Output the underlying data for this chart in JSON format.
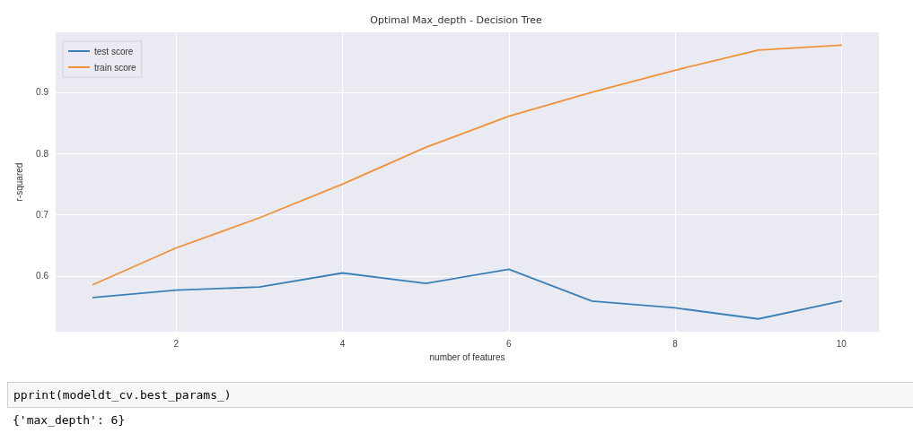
{
  "chart_data": {
    "type": "line",
    "title": "Optimal Max_depth - Decision Tree",
    "xlabel": "number of features",
    "ylabel": "r-squared",
    "x": [
      1,
      2,
      3,
      4,
      5,
      6,
      7,
      8,
      9,
      10
    ],
    "series": [
      {
        "name": "test score",
        "color": "#3a80b8",
        "values": [
          0.565,
          0.577,
          0.582,
          0.605,
          0.588,
          0.611,
          0.559,
          0.548,
          0.53,
          0.559
        ]
      },
      {
        "name": "train score",
        "color": "#f0913a",
        "values": [
          0.586,
          0.646,
          0.695,
          0.75,
          0.81,
          0.861,
          0.9,
          0.936,
          0.969,
          0.977
        ]
      }
    ],
    "xlim": [
      0.55,
      10.45
    ],
    "xticks": [
      2,
      4,
      6,
      8,
      10
    ],
    "ylim": [
      0.509,
      0.998
    ],
    "yticks": [
      0.6,
      0.7,
      0.8,
      0.9
    ],
    "grid": true,
    "legend": "top left",
    "marker": "none",
    "line_style": "solid",
    "annotations": [
      "pprint(modeldt_cv.best_params_)",
      "{'max_depth': 6}"
    ]
  }
}
